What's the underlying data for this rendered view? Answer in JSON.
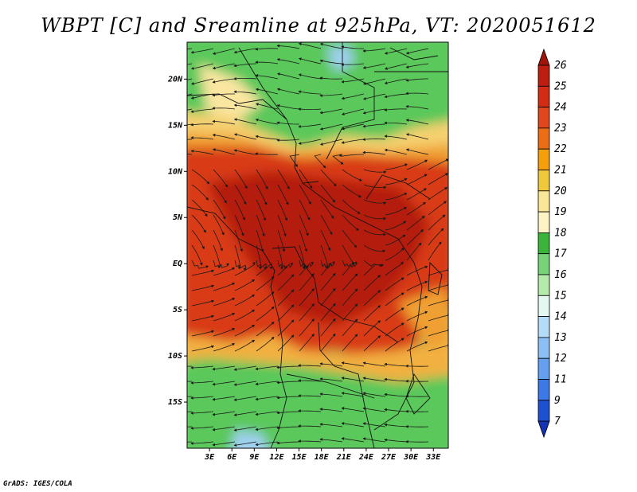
{
  "title": "WBPT [C] and Sreamline at 925hPa, VT: 2020051612",
  "credit": "GrADS: IGES/COLA",
  "map": {
    "lon_range": [
      0,
      35
    ],
    "lat_range": [
      -20,
      24
    ],
    "x_ticks": [
      "3E",
      "6E",
      "9E",
      "12E",
      "15E",
      "18E",
      "21E",
      "24E",
      "27E",
      "30E",
      "33E"
    ],
    "y_ticks": [
      "20N",
      "15N",
      "10N",
      "5N",
      "EQ",
      "5S",
      "10S",
      "15S"
    ]
  },
  "colorbar": {
    "labels": [
      "26",
      "25",
      "24",
      "23",
      "22",
      "21",
      "20",
      "19",
      "18",
      "17",
      "16",
      "15",
      "14",
      "13",
      "12",
      "11",
      "9",
      "7"
    ],
    "colors": [
      "#a0140a",
      "#be1e0f",
      "#d22d14",
      "#e1461e",
      "#eb6e14",
      "#f5a00a",
      "#f0c83c",
      "#fae696",
      "#fcf4c4",
      "#3cb43c",
      "#78d278",
      "#b4ebaa",
      "#e4f8f2",
      "#b4dcf8",
      "#8cc0f4",
      "#64a0ee",
      "#3c78e6",
      "#1e50d2",
      "#1432b4"
    ]
  },
  "colors": {
    "hot": "#c8200c",
    "warm": "#f0a030",
    "cool": "#5ac85a",
    "cold": "#a0d0f0"
  }
}
